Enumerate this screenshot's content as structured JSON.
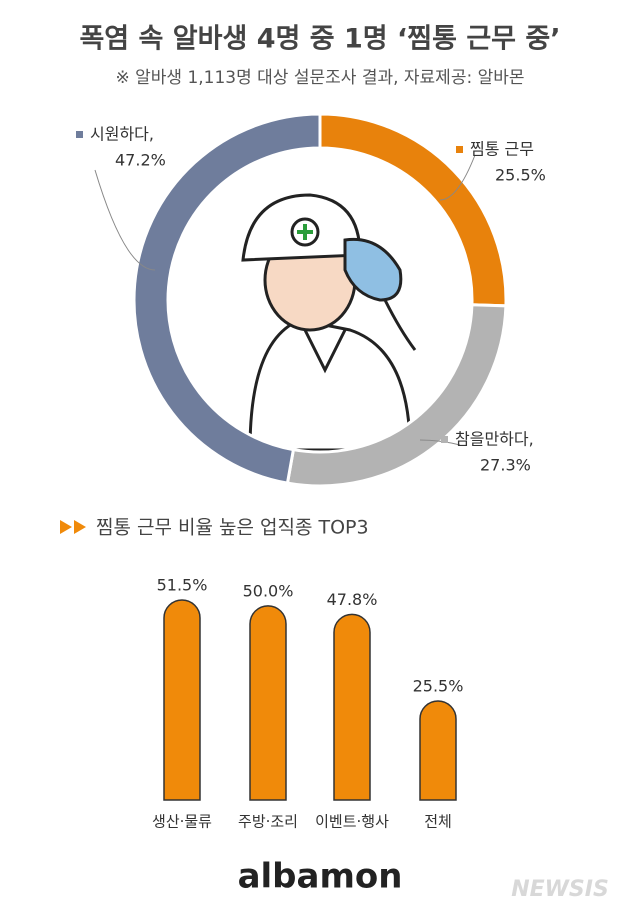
{
  "chart_data": [
    {
      "type": "donut",
      "title": "폭염 속 알바생 4명 중 1명 ‘찜통 근무 중’",
      "subtitle": "※ 알바생 1,113명 대상 설문조사 결과, 자료제공: 알바몬",
      "categories": [
        "찜통 근무",
        "참을만하다,",
        "시원하다,"
      ],
      "values": [
        25.5,
        27.3,
        47.2
      ],
      "value_labels": [
        "25.5%",
        "27.3%",
        "47.2%"
      ],
      "colors": [
        "#e8820c",
        "#b3b3b3",
        "#6f7d9c"
      ]
    },
    {
      "type": "bar",
      "title": "찜통 근무 비율 높은 업직종 TOP3",
      "categories": [
        "생산·물류",
        "주방·조리",
        "이벤트·행사",
        "전체"
      ],
      "values": [
        51.5,
        50.0,
        47.8,
        25.5
      ],
      "value_labels": [
        "51.5%",
        "50.0%",
        "47.8%",
        "25.5%"
      ],
      "color": "#f08a0a"
    }
  ],
  "logo": "albamon",
  "watermark": "NEWSIS"
}
